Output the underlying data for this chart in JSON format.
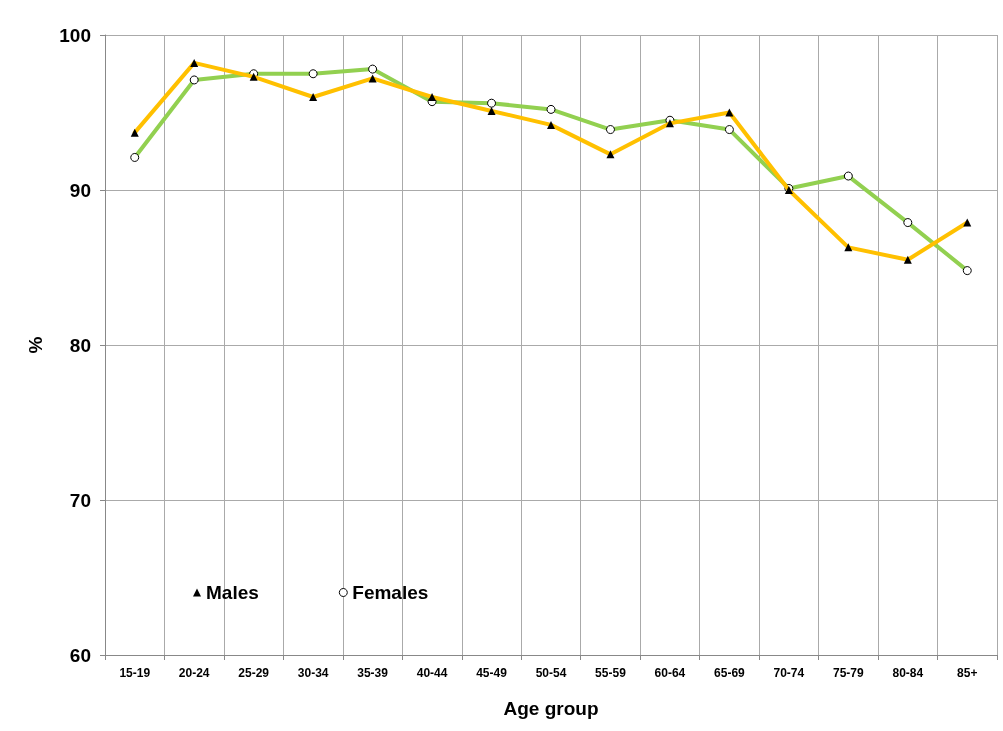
{
  "chart_data": {
    "type": "line",
    "xlabel": "Age group",
    "ylabel": "%",
    "categories": [
      "15-19",
      "20-24",
      "25-29",
      "30-34",
      "35-39",
      "40-44",
      "45-49",
      "50-54",
      "55-59",
      "60-64",
      "65-69",
      "70-74",
      "75-79",
      "80-84",
      "85+"
    ],
    "series": [
      {
        "name": "Males",
        "color": "#ffc000",
        "marker": "triangle",
        "values": [
          93.7,
          98.2,
          97.3,
          96.0,
          97.2,
          96.0,
          95.1,
          94.2,
          92.3,
          94.3,
          95.0,
          90.0,
          86.3,
          85.5,
          87.9
        ]
      },
      {
        "name": "Females",
        "color": "#92d050",
        "marker": "circle",
        "values": [
          92.1,
          97.1,
          97.5,
          97.5,
          97.8,
          95.7,
          95.6,
          95.2,
          93.9,
          94.5,
          93.9,
          90.1,
          90.9,
          87.9,
          84.8
        ]
      }
    ],
    "ylim": [
      60,
      100
    ],
    "yticks": [
      60,
      70,
      80,
      90,
      100
    ],
    "grid": true,
    "legend": "bottom left",
    "line_style": "solid"
  }
}
